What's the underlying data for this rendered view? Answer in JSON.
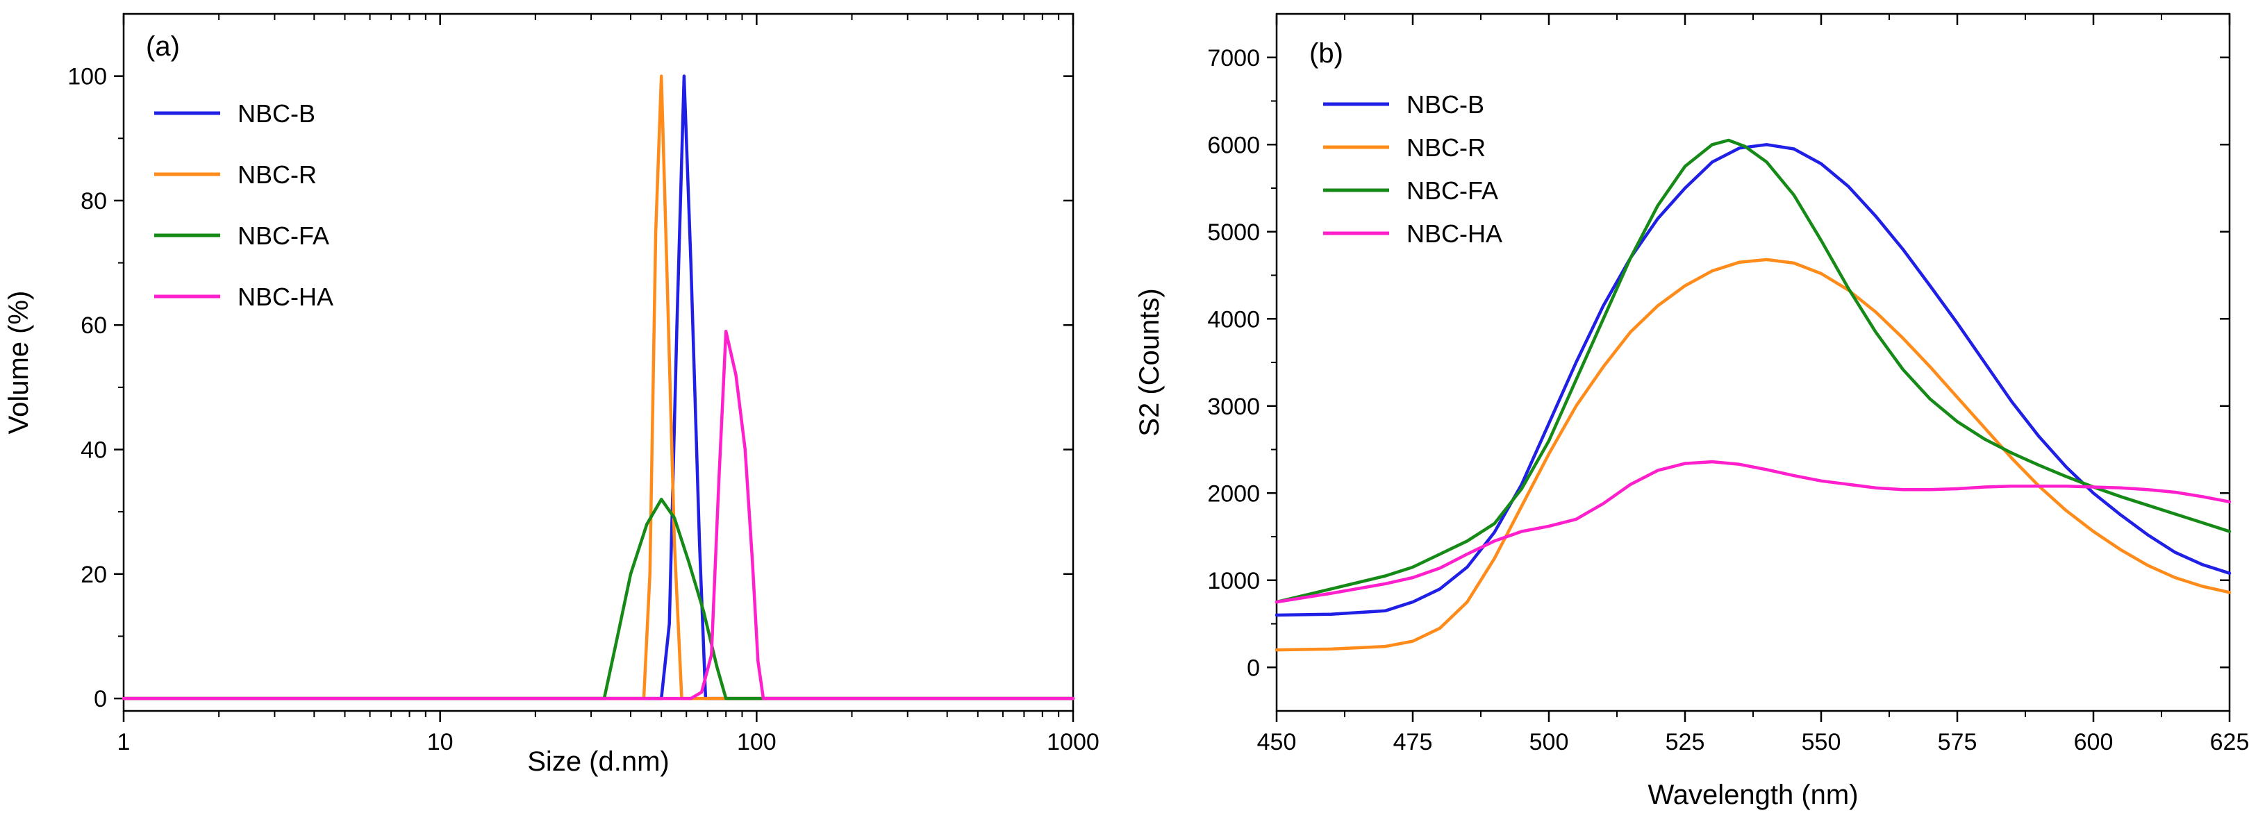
{
  "chart_data": [
    {
      "id": "a",
      "type": "line",
      "panel_label": "(a)",
      "xlabel": "Size (d.nm)",
      "ylabel": "Volume (%)",
      "xscale": "log",
      "xlim": [
        1,
        1000
      ],
      "ylim": [
        -2,
        110
      ],
      "xticks": [
        1,
        10,
        100,
        1000
      ],
      "xtick_labels": [
        "1",
        "10",
        "100",
        "1000"
      ],
      "yticks": [
        0,
        20,
        40,
        60,
        80,
        100
      ],
      "ytick_labels": [
        "0",
        "20",
        "40",
        "60",
        "80",
        "100"
      ],
      "legend_position": "top-left",
      "series": [
        {
          "name": "NBC-B",
          "color": "#1f1fe6",
          "x": [
            1,
            50,
            53,
            56,
            59,
            62,
            66,
            69,
            1000
          ],
          "y": [
            0,
            0,
            12,
            60,
            100,
            70,
            25,
            0,
            0
          ]
        },
        {
          "name": "NBC-R",
          "color": "#ff8c1a",
          "x": [
            1,
            44,
            46,
            48,
            50,
            52,
            55,
            58,
            1000
          ],
          "y": [
            0,
            0,
            20,
            75,
            100,
            70,
            25,
            0,
            0
          ]
        },
        {
          "name": "NBC-FA",
          "color": "#168a16",
          "x": [
            1,
            33,
            36,
            40,
            45,
            50,
            55,
            61,
            68,
            75,
            80,
            1000
          ],
          "y": [
            0,
            0,
            9,
            20,
            28,
            32,
            29,
            22,
            14,
            5,
            0,
            0
          ]
        },
        {
          "name": "NBC-HA",
          "color": "#ff1fcc",
          "x": [
            1,
            55,
            62,
            67,
            72,
            76,
            80,
            86,
            92,
            97,
            101,
            105,
            1000
          ],
          "y": [
            0,
            0,
            0,
            1,
            7,
            35,
            59,
            52,
            40,
            22,
            6,
            0,
            0
          ]
        }
      ]
    },
    {
      "id": "b",
      "type": "line",
      "panel_label": "(b)",
      "xlabel": "Wavelength (nm)",
      "ylabel": "S2 (Counts)",
      "xscale": "linear",
      "xlim": [
        450,
        625
      ],
      "ylim": [
        -500,
        7500
      ],
      "xticks": [
        450,
        475,
        500,
        525,
        550,
        575,
        600,
        625
      ],
      "xtick_labels": [
        "450",
        "475",
        "500",
        "525",
        "550",
        "575",
        "600",
        "625"
      ],
      "yticks": [
        0,
        1000,
        2000,
        3000,
        4000,
        5000,
        6000,
        7000
      ],
      "ytick_labels": [
        "0",
        "1000",
        "2000",
        "3000",
        "4000",
        "5000",
        "6000",
        "7000"
      ],
      "legend_position": "top-left",
      "series": [
        {
          "name": "NBC-B",
          "color": "#1f1fe6",
          "x": [
            450,
            460,
            470,
            475,
            480,
            485,
            490,
            495,
            500,
            505,
            510,
            515,
            520,
            525,
            530,
            535,
            540,
            545,
            550,
            555,
            560,
            565,
            570,
            575,
            580,
            585,
            590,
            595,
            600,
            605,
            610,
            615,
            620,
            625
          ],
          "y": [
            600,
            610,
            650,
            750,
            900,
            1150,
            1550,
            2100,
            2800,
            3500,
            4150,
            4700,
            5150,
            5500,
            5800,
            5960,
            6000,
            5950,
            5780,
            5520,
            5180,
            4800,
            4380,
            3950,
            3500,
            3050,
            2650,
            2300,
            2000,
            1750,
            1520,
            1320,
            1180,
            1080
          ]
        },
        {
          "name": "NBC-R",
          "color": "#ff8c1a",
          "x": [
            450,
            460,
            470,
            475,
            480,
            485,
            490,
            495,
            500,
            505,
            510,
            515,
            520,
            525,
            530,
            535,
            540,
            545,
            550,
            555,
            560,
            565,
            570,
            575,
            580,
            585,
            590,
            595,
            600,
            605,
            610,
            615,
            620,
            625
          ],
          "y": [
            200,
            210,
            240,
            300,
            450,
            750,
            1250,
            1850,
            2450,
            3000,
            3450,
            3850,
            4150,
            4380,
            4550,
            4650,
            4680,
            4640,
            4520,
            4330,
            4080,
            3780,
            3450,
            3100,
            2750,
            2400,
            2080,
            1800,
            1560,
            1350,
            1170,
            1030,
            930,
            860
          ]
        },
        {
          "name": "NBC-FA",
          "color": "#168a16",
          "x": [
            450,
            460,
            470,
            475,
            480,
            485,
            490,
            495,
            500,
            505,
            510,
            515,
            520,
            525,
            530,
            533,
            536,
            540,
            545,
            550,
            555,
            560,
            565,
            570,
            575,
            580,
            585,
            590,
            595,
            600,
            605,
            610,
            615,
            620,
            625
          ],
          "y": [
            750,
            900,
            1050,
            1150,
            1300,
            1450,
            1650,
            2050,
            2600,
            3300,
            4000,
            4700,
            5300,
            5750,
            6000,
            6050,
            5980,
            5800,
            5420,
            4900,
            4350,
            3850,
            3420,
            3080,
            2820,
            2620,
            2460,
            2320,
            2190,
            2070,
            1960,
            1860,
            1760,
            1660,
            1560
          ]
        },
        {
          "name": "NBC-HA",
          "color": "#ff1fcc",
          "x": [
            450,
            460,
            470,
            475,
            480,
            485,
            490,
            495,
            500,
            505,
            510,
            515,
            520,
            525,
            530,
            535,
            540,
            545,
            550,
            555,
            560,
            565,
            570,
            575,
            580,
            585,
            590,
            595,
            600,
            605,
            610,
            615,
            620,
            625
          ],
          "y": [
            750,
            850,
            960,
            1030,
            1140,
            1300,
            1450,
            1560,
            1620,
            1700,
            1880,
            2100,
            2260,
            2340,
            2360,
            2330,
            2270,
            2200,
            2140,
            2100,
            2060,
            2040,
            2040,
            2050,
            2070,
            2080,
            2080,
            2080,
            2070,
            2060,
            2040,
            2010,
            1960,
            1900
          ]
        }
      ]
    }
  ]
}
